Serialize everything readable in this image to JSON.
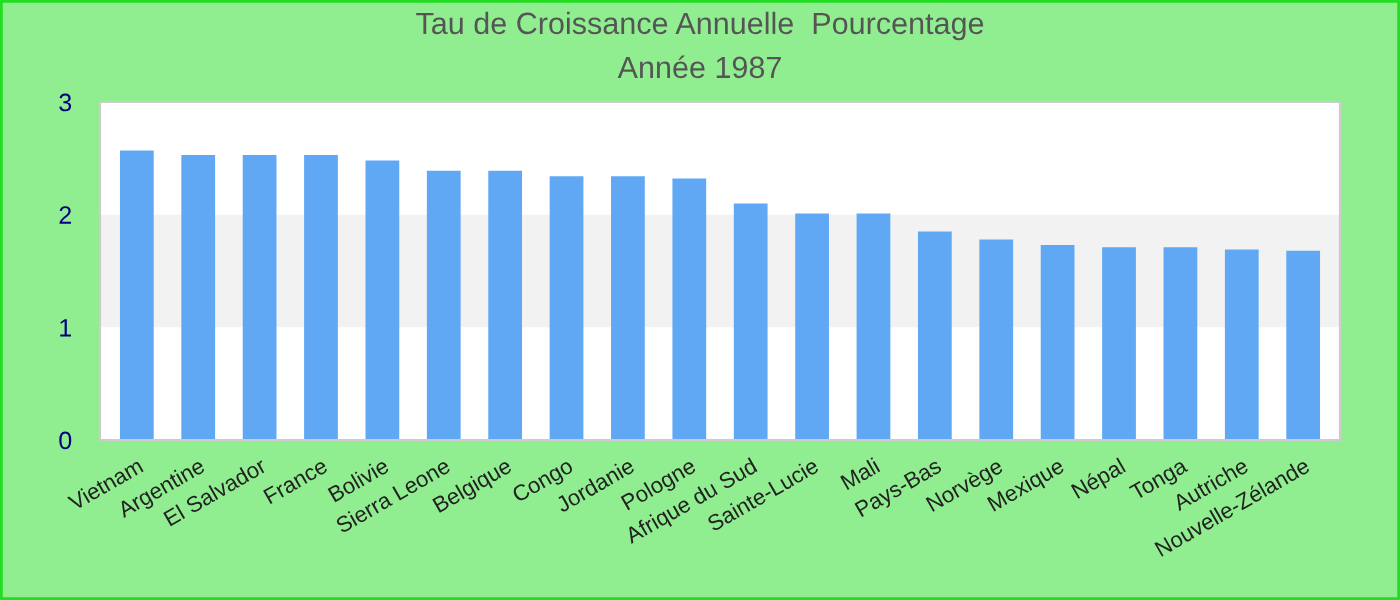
{
  "chart_data": {
    "type": "bar",
    "title": "Tau de Croissance Annuelle  Pourcentage",
    "subtitle": "Année 1987",
    "categories": [
      "Vietnam",
      "Argentine",
      "El Salvador",
      "France",
      "Bolivie",
      "Sierra Leone",
      "Belgique",
      "Congo",
      "Jordanie",
      "Pologne",
      "Afrique du Sud",
      "Sainte-Lucie",
      "Mali",
      "Pays-Bas",
      "Norvège",
      "Mexique",
      "Népal",
      "Tonga",
      "Autriche",
      "Nouvelle-Zélande"
    ],
    "values": [
      2.57,
      2.53,
      2.53,
      2.53,
      2.48,
      2.39,
      2.39,
      2.34,
      2.34,
      2.32,
      2.1,
      2.01,
      2.01,
      1.85,
      1.78,
      1.73,
      1.71,
      1.71,
      1.69,
      1.68
    ],
    "color": "#60a8f4",
    "ylim": [
      0,
      3
    ],
    "yticks": [
      0,
      1,
      2,
      3
    ],
    "grid": false,
    "bands": [
      {
        "axis": "y",
        "from": 1,
        "to": 2,
        "color": "#f2f2f2"
      }
    ]
  }
}
